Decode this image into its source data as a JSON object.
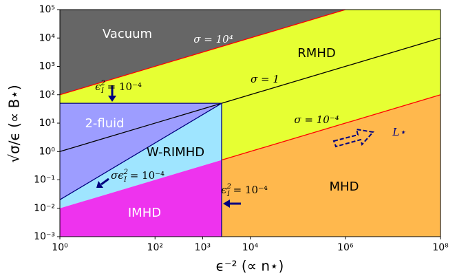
{
  "chart_data": {
    "type": "regime",
    "xlabel": "ϵ⁻² (∝ n⋆)",
    "ylabel": "√σ/ϵ (∝ B⋆)",
    "xscale": "log",
    "yscale": "log",
    "xlim": [
      1,
      100000000
    ],
    "ylim": [
      0.001,
      100000
    ],
    "xticks": [
      {
        "value": 1,
        "label": "10⁰"
      },
      {
        "value": 100,
        "label": "10²"
      },
      {
        "value": 1000,
        "label": "10³"
      },
      {
        "value": 10000,
        "label": "10⁴"
      },
      {
        "value": 1000000,
        "label": "10⁶"
      },
      {
        "value": 100000000,
        "label": "10⁸"
      }
    ],
    "yticks": [
      {
        "value": 0.001,
        "label": "10⁻³"
      },
      {
        "value": 0.01,
        "label": "10⁻²"
      },
      {
        "value": 0.1,
        "label": "10⁻¹"
      },
      {
        "value": 1,
        "label": "10⁰"
      },
      {
        "value": 10,
        "label": "10¹"
      },
      {
        "value": 100,
        "label": "10²"
      },
      {
        "value": 1000,
        "label": "10³"
      },
      {
        "value": 10000,
        "label": "10⁴"
      },
      {
        "value": 100000,
        "label": "10⁵"
      }
    ],
    "regions": [
      {
        "name": "Vacuum",
        "color": "#666666",
        "x": [
          1,
          1000000,
          1
        ],
        "y": [
          100,
          100000,
          100000
        ]
      },
      {
        "name": "RMHD",
        "color": "#e6ff33",
        "x": [
          1,
          1000000,
          100000000,
          100000000,
          2512,
          2512,
          1
        ],
        "y": [
          100,
          100000,
          100000,
          100,
          0.501,
          50.1,
          50.1
        ]
      },
      {
        "name": "2-fluid",
        "color": "#9d9dff",
        "x": [
          1,
          2512,
          1
        ],
        "y": [
          0.02,
          50.1,
          50.1
        ]
      },
      {
        "name": "W-RIMHD",
        "color": "#9fe5ff",
        "x": [
          1,
          2512,
          2512,
          1
        ],
        "y": [
          0.01,
          0.501,
          50.1,
          0.02
        ]
      },
      {
        "name": "IMHD",
        "color": "#ee33ee",
        "x": [
          1,
          2512,
          2512,
          1
        ],
        "y": [
          0.001,
          0.001,
          0.501,
          0.01
        ]
      },
      {
        "name": "MHD",
        "color": "#ffb84d",
        "x": [
          2512,
          100000000,
          100000000,
          2512
        ],
        "y": [
          0.001,
          0.001,
          100,
          0.501
        ]
      }
    ],
    "lines": [
      {
        "color": "#ff0000",
        "x": [
          1,
          1000000
        ],
        "y": [
          100,
          100000
        ]
      },
      {
        "color": "#000000",
        "x": [
          1,
          100000000
        ],
        "y": [
          1,
          10000
        ]
      },
      {
        "color": "#ff0000",
        "x": [
          2512,
          100000000
        ],
        "y": [
          0.501,
          100
        ]
      },
      {
        "color": "#00007f",
        "x": [
          1,
          2512
        ],
        "y": [
          50.1,
          50.1
        ]
      },
      {
        "color": "#00007f",
        "x": [
          2512,
          2512
        ],
        "y": [
          0.001,
          50.1
        ]
      },
      {
        "color": "#00007f",
        "x": [
          1,
          2512
        ],
        "y": [
          0.02,
          50.1
        ]
      }
    ],
    "annotations": [
      {
        "text": "σ = 10⁴"
      },
      {
        "text": "σ = 1"
      },
      {
        "text": "σ = 10⁻⁴"
      },
      {
        "text": "ϵ",
        "sub": "I",
        "sup": "2",
        "rest": " = 10⁻⁴"
      },
      {
        "text": "σϵ",
        "sub": "I",
        "sup": "2",
        "rest": " = 10⁻⁴"
      },
      {
        "text": "ϵ",
        "sub": "I",
        "sup": "2",
        "rest": " = 10⁻⁴"
      },
      {
        "text": "L⋆"
      }
    ]
  }
}
